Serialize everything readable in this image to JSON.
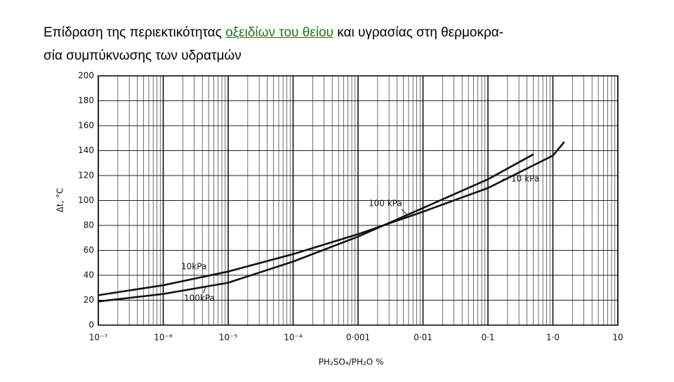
{
  "heading": {
    "before": "Επίδραση της περιεκτικότητας",
    "link": "οξειδίων του θείου",
    "after": "και υγρασίας στη θερμοκρα-",
    "line2": "σία συμπύκνωσης των υδρατμών"
  },
  "chart_data": {
    "type": "line",
    "xscale": "log",
    "x_label": "PH₂SO₄/PH₂O   %",
    "y_label": "Δt,   °C",
    "xlim": [
      1e-07,
      10
    ],
    "ylim": [
      0,
      200
    ],
    "xticks": [
      {
        "value": 1e-07,
        "label": "10⁻⁷"
      },
      {
        "value": 1e-06,
        "label": "10⁻⁶"
      },
      {
        "value": 1e-05,
        "label": "10⁻⁵"
      },
      {
        "value": 0.0001,
        "label": "10⁻⁴"
      },
      {
        "value": 0.001,
        "label": "0·001"
      },
      {
        "value": 0.01,
        "label": "0·01"
      },
      {
        "value": 0.1,
        "label": "0·1"
      },
      {
        "value": 1,
        "label": "1·0"
      },
      10
    ],
    "yticks": [
      0,
      20,
      40,
      60,
      80,
      100,
      120,
      140,
      160,
      180,
      200
    ],
    "grid": true,
    "color": "#111",
    "series": [
      {
        "name": "10kPa",
        "x": [
          1e-07,
          1e-06,
          1e-05,
          0.0001,
          0.001,
          0.01,
          0.1,
          1,
          1.5
        ],
        "values": [
          24,
          32,
          43,
          57,
          73,
          91,
          110,
          136,
          147
        ]
      },
      {
        "name": "100kPa",
        "x": [
          1e-07,
          1e-06,
          1e-05,
          0.0001,
          0.001,
          0.01,
          0.1,
          0.5
        ],
        "values": [
          19,
          25,
          34,
          51,
          71,
          94,
          117,
          137
        ]
      }
    ],
    "annotations": [
      "100 kPa",
      "10 kPa"
    ]
  }
}
